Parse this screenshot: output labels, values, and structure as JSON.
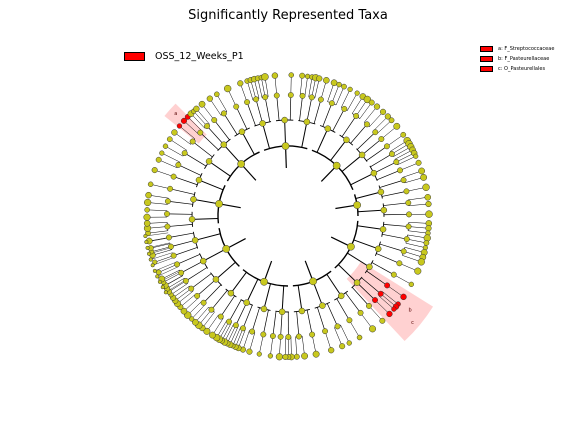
{
  "title": "Significantly Represented Taxa",
  "group_legend": {
    "label": "OSS_12_Weeks_P1",
    "color": "#ff0000"
  },
  "taxa_legend": [
    {
      "label": "a: F_Streptococcaceae"
    },
    {
      "label": "b: F_Pasteurellaceae"
    },
    {
      "label": "c: O_Pasteurellales"
    }
  ],
  "highlight_markers": [
    "a",
    "b",
    "c"
  ],
  "colors": {
    "node_default": "#c8c81e",
    "node_highlight": "#ff0000",
    "highlight_shade": "#ff9999",
    "edge": "#000000"
  }
}
